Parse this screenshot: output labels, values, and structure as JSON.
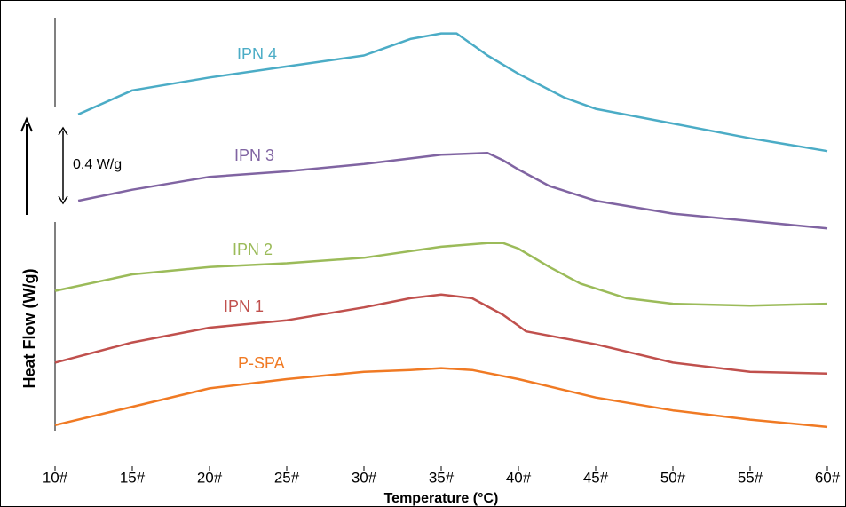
{
  "chart_data": {
    "type": "line",
    "x_label": "Temperature (°C)",
    "y_label": "Heat Flow (W/g)",
    "annotations": [
      "0.4 W/g"
    ],
    "xlim": [
      10,
      60
    ],
    "xticks": [
      {
        "value": 10,
        "label": "10#"
      },
      {
        "value": 15,
        "label": "15#"
      },
      {
        "value": 20,
        "label": "20#"
      },
      {
        "value": 25,
        "label": "25#"
      },
      {
        "value": 30,
        "label": "30#"
      },
      {
        "value": 35,
        "label": "35#"
      },
      {
        "value": 40,
        "label": "40#"
      },
      {
        "value": 45,
        "label": "45#"
      },
      {
        "value": 50,
        "label": "50#"
      },
      {
        "value": 55,
        "label": "55#"
      },
      {
        "value": 60,
        "label": "60#"
      }
    ],
    "ylim": [
      0,
      2.25
    ],
    "grid": false,
    "series": [
      {
        "name": "P-SPA",
        "color": "#f07a24",
        "x": [
          10,
          15,
          20,
          25,
          30,
          33,
          35,
          37,
          40,
          45,
          50,
          55,
          60
        ],
        "values": [
          0.03,
          0.13,
          0.23,
          0.28,
          0.32,
          0.33,
          0.34,
          0.33,
          0.28,
          0.18,
          0.11,
          0.06,
          0.02
        ]
      },
      {
        "name": "IPN 1",
        "color": "#c0504d",
        "x": [
          10,
          15,
          20,
          25,
          30,
          33,
          35,
          37,
          39,
          40,
          40.5,
          45,
          50,
          55,
          60
        ],
        "values": [
          0.37,
          0.48,
          0.56,
          0.6,
          0.67,
          0.72,
          0.74,
          0.72,
          0.63,
          0.57,
          0.54,
          0.47,
          0.37,
          0.32,
          0.31
        ]
      },
      {
        "name": "IPN 2",
        "color": "#9bbb59",
        "x": [
          10,
          15,
          20,
          25,
          30,
          35,
          38,
          39,
          40,
          42,
          44,
          47,
          50,
          55,
          60
        ],
        "values": [
          0.76,
          0.85,
          0.89,
          0.91,
          0.94,
          1.0,
          1.02,
          1.02,
          0.99,
          0.89,
          0.8,
          0.72,
          0.69,
          0.68,
          0.69
        ]
      },
      {
        "name": "IPN 3",
        "color": "#8064a2",
        "x": [
          11.5,
          15,
          20,
          25,
          30,
          35,
          38,
          39,
          40,
          42,
          45,
          50,
          55,
          60
        ],
        "values": [
          1.25,
          1.31,
          1.38,
          1.41,
          1.45,
          1.5,
          1.51,
          1.47,
          1.42,
          1.33,
          1.25,
          1.18,
          1.14,
          1.1
        ]
      },
      {
        "name": "IPN 4",
        "color": "#4bacc6",
        "x": [
          11.5,
          15,
          20,
          25,
          30,
          31,
          33,
          35,
          36,
          38,
          40,
          43,
          45,
          50,
          55,
          60
        ],
        "values": [
          1.72,
          1.85,
          1.92,
          1.98,
          2.04,
          2.07,
          2.13,
          2.16,
          2.16,
          2.04,
          1.94,
          1.81,
          1.75,
          1.67,
          1.59,
          1.52
        ]
      }
    ]
  }
}
